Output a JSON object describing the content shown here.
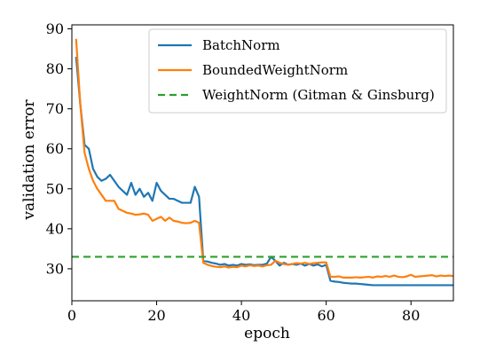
{
  "chart_data": {
    "type": "line",
    "xlabel": "epoch",
    "ylabel": "validation error",
    "xlim": [
      0,
      90
    ],
    "ylim": [
      22,
      91
    ],
    "xticks": [
      0,
      20,
      40,
      60,
      80
    ],
    "yticks": [
      30,
      40,
      50,
      60,
      70,
      80,
      90
    ],
    "grid": false,
    "legend_position": "top-right",
    "series": [
      {
        "name": "BatchNorm",
        "color": "#1f77b4",
        "style": "solid",
        "x": [
          1,
          2,
          3,
          4,
          5,
          6,
          7,
          8,
          9,
          10,
          11,
          12,
          13,
          14,
          15,
          16,
          17,
          18,
          19,
          20,
          21,
          22,
          23,
          24,
          25,
          26,
          27,
          28,
          29,
          30,
          31,
          32,
          33,
          34,
          35,
          36,
          37,
          38,
          39,
          40,
          41,
          42,
          43,
          44,
          45,
          46,
          47,
          48,
          49,
          50,
          51,
          52,
          53,
          54,
          55,
          56,
          57,
          58,
          59,
          60,
          61,
          62,
          63,
          64,
          65,
          66,
          67,
          68,
          69,
          70,
          71,
          72,
          73,
          74,
          75,
          76,
          77,
          78,
          79,
          80,
          81,
          82,
          83,
          84,
          85,
          86,
          87,
          88,
          89,
          90
        ],
        "y": [
          83,
          71,
          61,
          60,
          55,
          53,
          52,
          52.5,
          53.5,
          52,
          50.5,
          49.5,
          48.5,
          51.5,
          48.5,
          50,
          48,
          49,
          47,
          51.5,
          49.5,
          48.5,
          47.5,
          47.5,
          47,
          46.5,
          46.5,
          46.5,
          50.5,
          48,
          32,
          31.8,
          31.5,
          31.3,
          31,
          31.2,
          30.8,
          31,
          30.8,
          31.2,
          31,
          31.1,
          30.9,
          31,
          31,
          31.3,
          33,
          32,
          30.8,
          31.5,
          31,
          31.2,
          31,
          31.3,
          30.8,
          31.2,
          30.8,
          31.1,
          30.6,
          31,
          27,
          26.8,
          26.7,
          26.5,
          26.4,
          26.3,
          26.3,
          26.2,
          26.1,
          26,
          25.9,
          25.9,
          25.9,
          25.9,
          25.9,
          25.9,
          25.9,
          25.9,
          25.9,
          25.9,
          25.9,
          25.9,
          25.9,
          25.9,
          25.9,
          25.9,
          25.9,
          25.9,
          25.9,
          25.9
        ]
      },
      {
        "name": "BoundedWeightNorm",
        "color": "#ff7f0e",
        "style": "solid",
        "x": [
          1,
          2,
          3,
          4,
          5,
          6,
          7,
          8,
          9,
          10,
          11,
          12,
          13,
          14,
          15,
          16,
          17,
          18,
          19,
          20,
          21,
          22,
          23,
          24,
          25,
          26,
          27,
          28,
          29,
          30,
          31,
          32,
          33,
          34,
          35,
          36,
          37,
          38,
          39,
          40,
          41,
          42,
          43,
          44,
          45,
          46,
          47,
          48,
          49,
          50,
          51,
          52,
          53,
          54,
          55,
          56,
          57,
          58,
          59,
          60,
          61,
          62,
          63,
          64,
          65,
          66,
          67,
          68,
          69,
          70,
          71,
          72,
          73,
          74,
          75,
          76,
          77,
          78,
          79,
          80,
          81,
          82,
          83,
          84,
          85,
          86,
          87,
          88,
          89,
          90
        ],
        "y": [
          87.5,
          71,
          59,
          55,
          52,
          50,
          48.5,
          47,
          47,
          47,
          45,
          44.5,
          44,
          43.8,
          43.5,
          43.6,
          43.8,
          43.5,
          42,
          42.5,
          43,
          42,
          42.8,
          42,
          41.8,
          41.5,
          41.4,
          41.5,
          42,
          41.5,
          31.5,
          31,
          30.7,
          30.5,
          30.4,
          30.6,
          30.3,
          30.5,
          30.4,
          30.8,
          30.6,
          30.9,
          30.7,
          30.8,
          30.6,
          30.9,
          31,
          32,
          31.5,
          31.2,
          31,
          31.2,
          31.4,
          31.3,
          31.5,
          31.2,
          31.4,
          31.5,
          31.6,
          31.6,
          28,
          28,
          28.1,
          27.8,
          27.8,
          27.8,
          27.9,
          27.8,
          27.9,
          28,
          27.8,
          28.1,
          28,
          28.2,
          28,
          28.3,
          28,
          27.9,
          28.1,
          28.5,
          28,
          28.1,
          28.2,
          28.3,
          28.4,
          28.1,
          28.3,
          28.2,
          28.3,
          28.2
        ]
      },
      {
        "name": "WeightNorm (Gitman & Ginsburg)",
        "color": "#2ca02c",
        "style": "dashed",
        "x": [
          0,
          90
        ],
        "y": [
          33,
          33
        ]
      }
    ]
  }
}
